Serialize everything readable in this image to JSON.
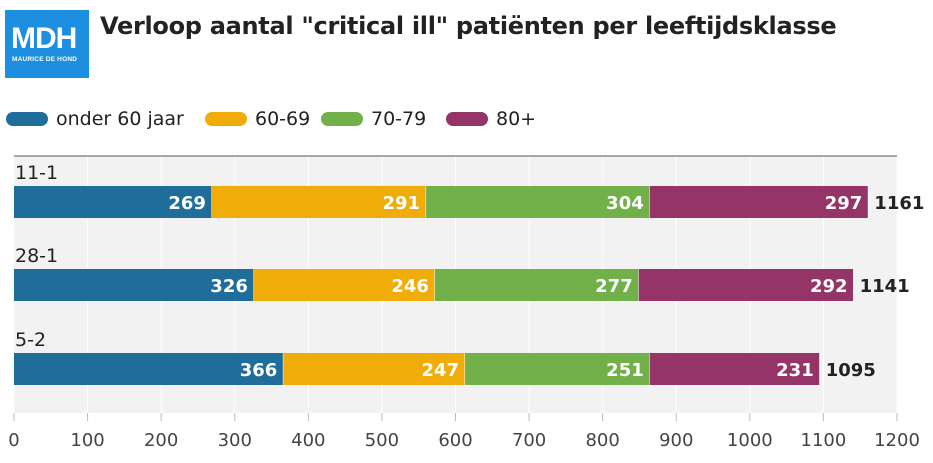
{
  "logo": {
    "text": "MDH",
    "subtext": "MAURICE DE HOND"
  },
  "chart_data": {
    "type": "bar",
    "orientation": "horizontal",
    "stacked": true,
    "title": "Verloop aantal \"critical ill\" patiënten per leeftijdsklasse",
    "categories": [
      "11-1",
      "28-1",
      "5-2"
    ],
    "series": [
      {
        "name": "onder 60 jaar",
        "color": "#1f6d9b",
        "values": [
          269,
          326,
          366
        ]
      },
      {
        "name": "60-69",
        "color": "#f0ad0a",
        "values": [
          291,
          246,
          247
        ]
      },
      {
        "name": "70-79",
        "color": "#72b04a",
        "values": [
          304,
          277,
          251
        ]
      },
      {
        "name": "80+",
        "color": "#953466",
        "values": [
          297,
          292,
          231
        ]
      }
    ],
    "totals": [
      1161,
      1141,
      1095
    ],
    "xlim": [
      0,
      1200
    ],
    "xticks": [
      0,
      100,
      200,
      300,
      400,
      500,
      600,
      700,
      800,
      900,
      1000,
      1100,
      1200
    ],
    "legend": "top-left",
    "grid": true
  }
}
